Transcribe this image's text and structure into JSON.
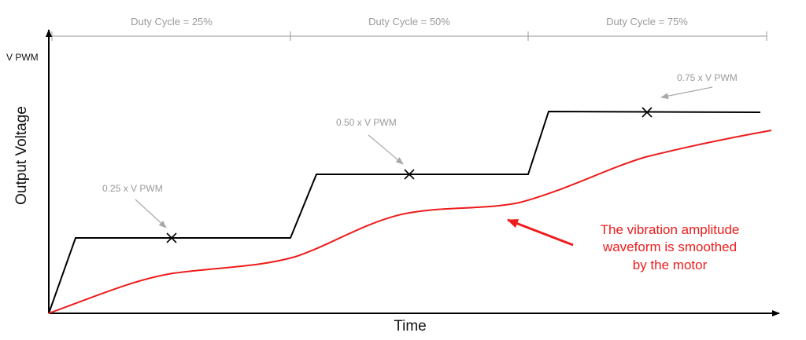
{
  "axes": {
    "y_title": "Output Voltage",
    "x_title": "Time",
    "y_max_label": "V PWM"
  },
  "segments": [
    {
      "label": "Duty Cycle = 25%"
    },
    {
      "label": "Duty Cycle = 50%"
    },
    {
      "label": "Duty Cycle = 75%"
    }
  ],
  "annotations": [
    {
      "label": "0.25 x V PWM"
    },
    {
      "label": "0.50 x V PWM"
    },
    {
      "label": "0.75 x V PWM"
    }
  ],
  "note_lines": [
    "The vibration amplitude",
    "waveform is smoothed",
    "by the motor"
  ],
  "colors": {
    "pwm_line": "#000000",
    "smoothed_line": "#ee1c1c",
    "guide": "#9a9a9a",
    "arrow_gray": "#a8a8a8"
  }
}
